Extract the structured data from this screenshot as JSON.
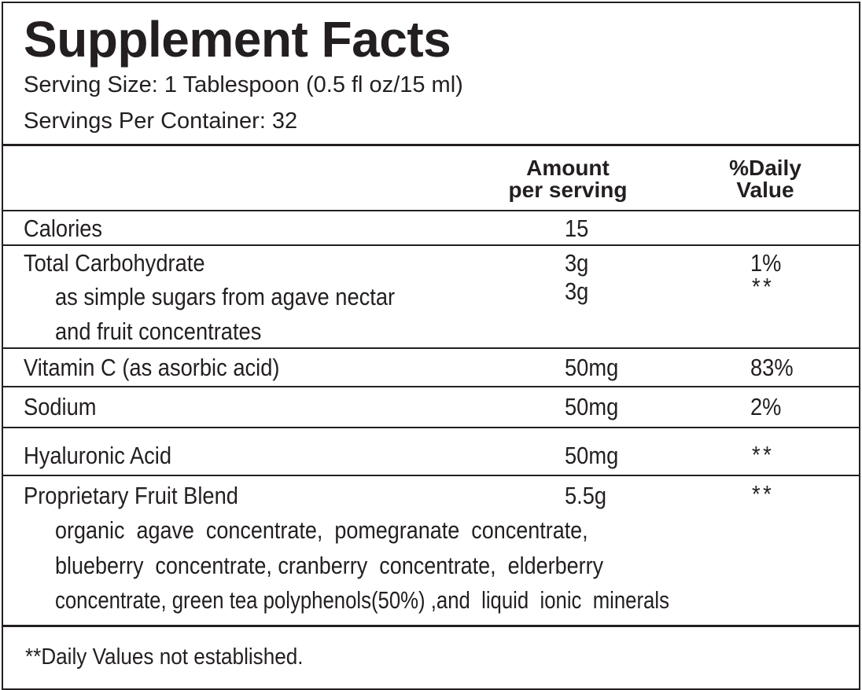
{
  "title": "Supplement Facts",
  "serving_size": "Serving Size: 1 Tablespoon (0.5 fl oz/15 ml)",
  "servings_per_container": "Servings Per Container:  32",
  "header": {
    "amount_line1": "Amount",
    "amount_line2": "per serving",
    "dv_line1": "%Daily",
    "dv_line2": "Value"
  },
  "rows": [
    {
      "name": "Calories",
      "amount": "15",
      "dv": ""
    },
    {
      "name": "Total Carbohydrate",
      "amount": "3g",
      "dv": "1%"
    },
    {
      "name": "as simple sugars from agave nectar",
      "name2": "and fruit concentrates",
      "amount": "3g",
      "dv": "**"
    },
    {
      "name": "Vitamin C (as asorbic acid)",
      "amount": "50mg",
      "dv": "83%"
    },
    {
      "name": "Sodium",
      "amount": "50mg",
      "dv": "2%"
    },
    {
      "name": "Hyaluronic Acid",
      "amount": "50mg",
      "dv": "**"
    },
    {
      "name": "Proprietary Fruit Blend",
      "amount": "5.5g",
      "dv": "**"
    }
  ],
  "blend_lines": [
    "organic  agave  concentrate,  pomegranate  concentrate,",
    "blueberry  concentrate, cranberry  concentrate,  elderberry",
    "concentrate, green tea polyphenols(50%) ,and  liquid  ionic  minerals"
  ],
  "footnote": "**Daily Values not established."
}
